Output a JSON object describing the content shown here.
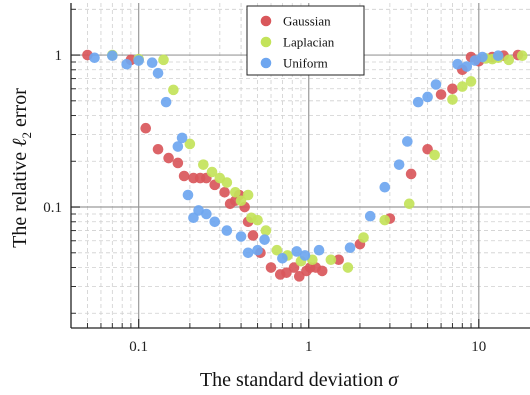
{
  "chart_data": {
    "type": "scatter",
    "title": "",
    "xlabel": "The standard deviation σ",
    "ylabel": "The relative ℓ2 error",
    "xlabel_parts": {
      "text": "The standard deviation ",
      "symbol": "σ"
    },
    "ylabel_parts": {
      "text": "The relative ",
      "symbol": "ℓ",
      "subscript": "2",
      "suffix": " error"
    },
    "x_scale": "log",
    "y_scale": "log",
    "xlim": [
      0.04,
      20
    ],
    "ylim": [
      0.016,
      2.2
    ],
    "x_ticks": [
      0.1,
      1,
      10
    ],
    "x_tick_labels": [
      "0.1",
      "1",
      "10"
    ],
    "y_ticks": [
      0.1,
      1
    ],
    "y_tick_labels": [
      "0.1",
      "1"
    ],
    "grid": true,
    "legend_position": "top-center",
    "series": [
      {
        "name": "Gaussian",
        "color": "#d9575b",
        "points": [
          [
            0.05,
            1.0
          ],
          [
            0.09,
            0.93
          ],
          [
            0.11,
            0.33
          ],
          [
            0.13,
            0.24
          ],
          [
            0.15,
            0.21
          ],
          [
            0.17,
            0.195
          ],
          [
            0.185,
            0.16
          ],
          [
            0.21,
            0.155
          ],
          [
            0.23,
            0.155
          ],
          [
            0.25,
            0.155
          ],
          [
            0.28,
            0.14
          ],
          [
            0.32,
            0.125
          ],
          [
            0.345,
            0.105
          ],
          [
            0.37,
            0.11
          ],
          [
            0.39,
            0.12
          ],
          [
            0.42,
            0.1
          ],
          [
            0.44,
            0.08
          ],
          [
            0.47,
            0.065
          ],
          [
            0.52,
            0.05
          ],
          [
            0.6,
            0.04
          ],
          [
            0.68,
            0.036
          ],
          [
            0.74,
            0.037
          ],
          [
            0.82,
            0.04
          ],
          [
            0.88,
            0.035
          ],
          [
            0.97,
            0.038
          ],
          [
            1.02,
            0.04
          ],
          [
            1.1,
            0.04
          ],
          [
            1.2,
            0.038
          ],
          [
            1.5,
            0.045
          ],
          [
            2.0,
            0.057
          ],
          [
            3.0,
            0.084
          ],
          [
            4.0,
            0.165
          ],
          [
            5.0,
            0.24
          ],
          [
            6.0,
            0.55
          ],
          [
            7.0,
            0.6
          ],
          [
            8.0,
            0.8
          ],
          [
            9.0,
            0.97
          ],
          [
            10.0,
            0.91
          ],
          [
            12.0,
            0.97
          ],
          [
            14.0,
            0.99
          ],
          [
            17.0,
            1.0
          ]
        ]
      },
      {
        "name": "Laplacian",
        "color": "#c3e35a",
        "points": [
          [
            0.07,
            1.0
          ],
          [
            0.1,
            0.94
          ],
          [
            0.14,
            0.93
          ],
          [
            0.16,
            0.59
          ],
          [
            0.2,
            0.26
          ],
          [
            0.24,
            0.19
          ],
          [
            0.27,
            0.17
          ],
          [
            0.3,
            0.155
          ],
          [
            0.33,
            0.145
          ],
          [
            0.37,
            0.125
          ],
          [
            0.4,
            0.11
          ],
          [
            0.44,
            0.12
          ],
          [
            0.46,
            0.085
          ],
          [
            0.5,
            0.082
          ],
          [
            0.56,
            0.07
          ],
          [
            0.65,
            0.052
          ],
          [
            0.75,
            0.048
          ],
          [
            0.9,
            0.044
          ],
          [
            1.05,
            0.045
          ],
          [
            1.35,
            0.045
          ],
          [
            1.7,
            0.04
          ],
          [
            2.1,
            0.063
          ],
          [
            2.8,
            0.082
          ],
          [
            3.9,
            0.105
          ],
          [
            5.5,
            0.22
          ],
          [
            7.0,
            0.51
          ],
          [
            8.0,
            0.62
          ],
          [
            9.0,
            0.67
          ],
          [
            11.0,
            0.95
          ],
          [
            12.0,
            0.94
          ],
          [
            13.0,
            0.96
          ],
          [
            15.0,
            0.93
          ],
          [
            18.0,
            0.99
          ]
        ]
      },
      {
        "name": "Uniform",
        "color": "#6ea6f0",
        "points": [
          [
            0.055,
            0.96
          ],
          [
            0.07,
            0.99
          ],
          [
            0.085,
            0.87
          ],
          [
            0.1,
            0.92
          ],
          [
            0.12,
            0.89
          ],
          [
            0.13,
            0.76
          ],
          [
            0.145,
            0.49
          ],
          [
            0.17,
            0.25
          ],
          [
            0.18,
            0.285
          ],
          [
            0.195,
            0.12
          ],
          [
            0.21,
            0.085
          ],
          [
            0.225,
            0.095
          ],
          [
            0.25,
            0.09
          ],
          [
            0.28,
            0.08
          ],
          [
            0.33,
            0.07
          ],
          [
            0.4,
            0.064
          ],
          [
            0.44,
            0.05
          ],
          [
            0.5,
            0.052
          ],
          [
            0.55,
            0.061
          ],
          [
            0.7,
            0.046
          ],
          [
            0.85,
            0.051
          ],
          [
            0.95,
            0.048
          ],
          [
            1.15,
            0.052
          ],
          [
            1.75,
            0.054
          ],
          [
            2.3,
            0.087
          ],
          [
            2.8,
            0.135
          ],
          [
            3.4,
            0.19
          ],
          [
            3.8,
            0.27
          ],
          [
            4.4,
            0.49
          ],
          [
            5.0,
            0.53
          ],
          [
            5.6,
            0.64
          ],
          [
            7.5,
            0.87
          ],
          [
            8.5,
            0.84
          ],
          [
            9.5,
            0.92
          ],
          [
            10.5,
            0.97
          ],
          [
            13.0,
            0.99
          ]
        ]
      }
    ]
  }
}
